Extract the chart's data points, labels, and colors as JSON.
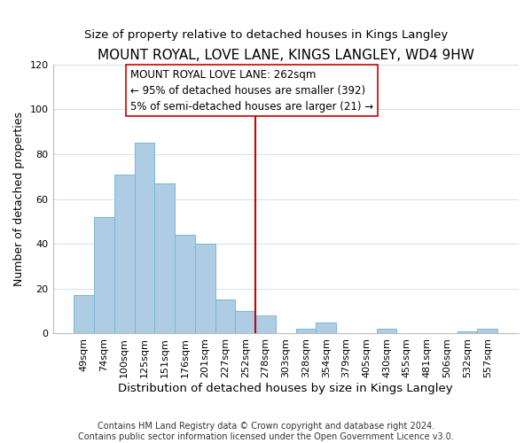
{
  "title": "MOUNT ROYAL, LOVE LANE, KINGS LANGLEY, WD4 9HW",
  "subtitle": "Size of property relative to detached houses in Kings Langley",
  "xlabel": "Distribution of detached houses by size in Kings Langley",
  "ylabel": "Number of detached properties",
  "footer_line1": "Contains HM Land Registry data © Crown copyright and database right 2024.",
  "footer_line2": "Contains public sector information licensed under the Open Government Licence v3.0.",
  "bar_labels": [
    "49sqm",
    "74sqm",
    "100sqm",
    "125sqm",
    "151sqm",
    "176sqm",
    "201sqm",
    "227sqm",
    "252sqm",
    "278sqm",
    "303sqm",
    "328sqm",
    "354sqm",
    "379sqm",
    "405sqm",
    "430sqm",
    "455sqm",
    "481sqm",
    "506sqm",
    "532sqm",
    "557sqm"
  ],
  "bar_values": [
    17,
    52,
    71,
    85,
    67,
    44,
    40,
    15,
    10,
    8,
    0,
    2,
    5,
    0,
    0,
    2,
    0,
    0,
    0,
    1,
    2
  ],
  "bar_color": "#aecce4",
  "bar_edge_color": "#7ab8d4",
  "vline_x": 8.5,
  "vline_color": "#cc0000",
  "annotation_title": "MOUNT ROYAL LOVE LANE: 262sqm",
  "annotation_line1": "← 95% of detached houses are smaller (392)",
  "annotation_line2": "5% of semi-detached houses are larger (21) →",
  "annotation_box_color": "#ffffff",
  "annotation_box_edge": "#cc0000",
  "ylim": [
    0,
    120
  ],
  "yticks": [
    0,
    20,
    40,
    60,
    80,
    100,
    120
  ],
  "title_fontsize": 11,
  "subtitle_fontsize": 9.5,
  "xlabel_fontsize": 9.5,
  "ylabel_fontsize": 9,
  "annotation_fontsize": 8.5,
  "footer_fontsize": 7,
  "tick_fontsize": 8
}
